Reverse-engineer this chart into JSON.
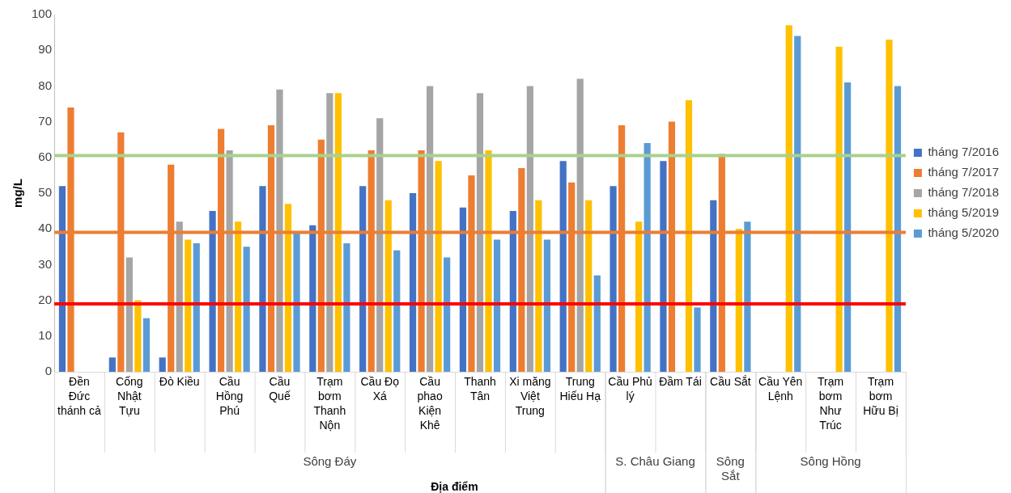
{
  "chart_data": {
    "type": "bar",
    "xlabel": "Địa điểm",
    "ylabel": "mg/L",
    "categories": [
      "Đền Đức thánh cả",
      "Cống Nhật Tựu",
      "Đò Kiều",
      "Cầu Hồng Phú",
      "Cầu Quế",
      "Trạm bơm Thanh Nộn",
      "Cầu Đọ Xá",
      "Cầu phao Kiện Khê",
      "Thanh Tân",
      "Xi măng Việt Trung",
      "Trung Hiếu Hạ",
      "Cầu Phủ lý",
      "Đầm Tái",
      "Cầu Sắt",
      "Cầu Yên Lệnh",
      "Trạm bơm Như Trúc",
      "Trạm bơm Hữu Bị"
    ],
    "series": [
      {
        "name": "tháng 7/2016",
        "color": "#4472c4",
        "values": [
          52,
          4,
          4,
          45,
          52,
          41,
          52,
          50,
          46,
          45,
          59,
          52,
          59,
          48,
          null,
          null,
          null
        ]
      },
      {
        "name": "tháng 7/2017",
        "color": "#ed7d31",
        "values": [
          74,
          67,
          58,
          68,
          69,
          65,
          62,
          62,
          55,
          57,
          53,
          69,
          70,
          61,
          null,
          null,
          null
        ]
      },
      {
        "name": "tháng 7/2018",
        "color": "#a5a5a5",
        "values": [
          null,
          32,
          42,
          62,
          79,
          78,
          71,
          80,
          78,
          80,
          82,
          null,
          null,
          null,
          null,
          null,
          null
        ]
      },
      {
        "name": "tháng 5/2019",
        "color": "#ffc000",
        "values": [
          null,
          20,
          37,
          42,
          47,
          78,
          48,
          59,
          62,
          48,
          48,
          42,
          76,
          40,
          97,
          91,
          93
        ]
      },
      {
        "name": "tháng 5/2020",
        "color": "#5b9bd5",
        "values": [
          null,
          15,
          36,
          35,
          39,
          36,
          34,
          32,
          37,
          37,
          27,
          64,
          18,
          42,
          94,
          81,
          80
        ]
      }
    ],
    "ylim": [
      0,
      100
    ],
    "yticks": [
      0,
      10,
      20,
      30,
      40,
      50,
      60,
      70,
      80,
      90,
      100
    ],
    "ref_lines": [
      {
        "axis": "y",
        "value": 60.5,
        "color": "#a9d18e"
      },
      {
        "axis": "y",
        "value": 39,
        "color": "#ed7d31"
      },
      {
        "axis": "y",
        "value": 19,
        "color": "#ff0000"
      }
    ],
    "annotations": [
      "Sông Đáy",
      "S. Châu Giang",
      "Sông Sắt",
      "Sông Hồng"
    ],
    "legend": "right",
    "grid": false
  }
}
